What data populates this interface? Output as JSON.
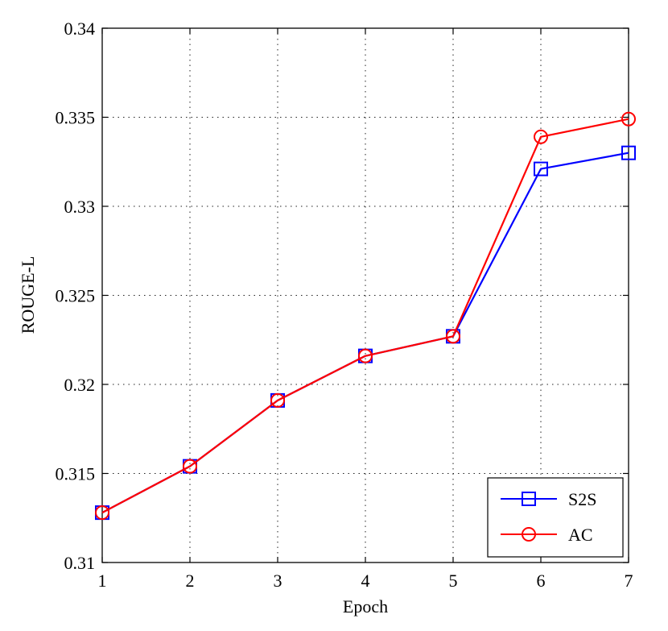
{
  "chart_data": {
    "type": "line",
    "title": "",
    "xlabel": "Epoch",
    "ylabel": "ROUGE-L",
    "x": [
      1,
      2,
      3,
      4,
      5,
      6,
      7
    ],
    "xlim": [
      1,
      7
    ],
    "ylim": [
      0.31,
      0.34
    ],
    "xticks": [
      "1",
      "2",
      "3",
      "4",
      "5",
      "6",
      "7"
    ],
    "yticks": [
      "0.31",
      "0.315",
      "0.32",
      "0.325",
      "0.33",
      "0.335",
      "0.34"
    ],
    "grid": true,
    "legend_position": "bottom-right",
    "series": [
      {
        "name": "S2S",
        "color": "#0000ff",
        "marker": "square",
        "values": [
          0.3128,
          0.3154,
          0.3191,
          0.3216,
          0.3227,
          0.3321,
          0.333
        ]
      },
      {
        "name": "AC",
        "color": "#ff0000",
        "marker": "circle",
        "values": [
          0.3128,
          0.3154,
          0.3191,
          0.3216,
          0.3227,
          0.3339,
          0.3349
        ]
      }
    ]
  }
}
